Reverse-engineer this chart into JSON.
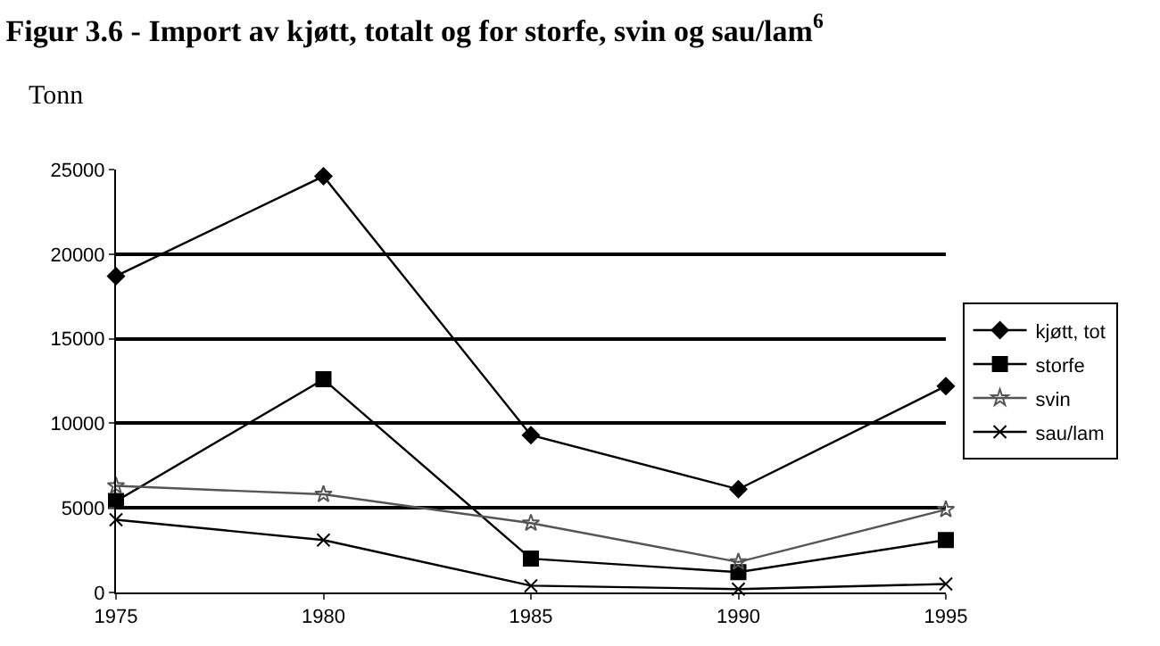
{
  "chart_data": {
    "type": "line",
    "title": "Figur 3.6 - Import av kjøtt, totalt og for storfe, svin og sau/lam$^{6}$",
    "ylabel": "Tonn",
    "x": [
      1975,
      1980,
      1985,
      1990,
      1995
    ],
    "xlim": [
      1975,
      1995
    ],
    "xticks": [
      1975,
      1980,
      1985,
      1990,
      1995
    ],
    "ylim": [
      0,
      25000
    ],
    "yticks": [
      0,
      5000,
      10000,
      15000,
      20000,
      25000
    ],
    "grid": "y",
    "legend": "right",
    "line_style": "solid",
    "series": [
      {
        "name": "kjøtt, tot",
        "color": "#000000",
        "marker": "diamond",
        "values": [
          18700,
          24600,
          9300,
          6100,
          12200
        ]
      },
      {
        "name": "storfe",
        "color": "#000000",
        "marker": "square",
        "values": [
          5400,
          12600,
          2000,
          1200,
          3100
        ]
      },
      {
        "name": "svin",
        "color": "#555555",
        "marker": "star",
        "values": [
          6300,
          5800,
          4100,
          1800,
          4900
        ]
      },
      {
        "name": "sau/lam",
        "color": "#000000",
        "marker": "cross",
        "values": [
          4300,
          3100,
          400,
          200,
          500
        ]
      }
    ]
  }
}
